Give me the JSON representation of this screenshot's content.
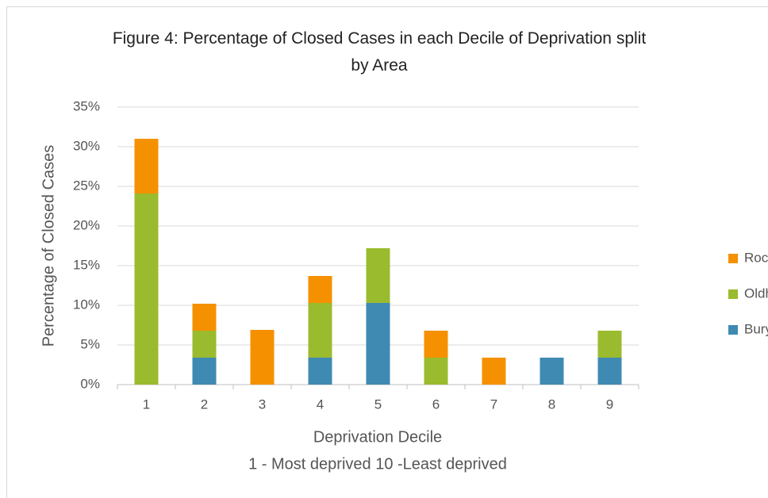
{
  "chart_data": {
    "type": "stacked_bar",
    "title": "Figure 4: Percentage of Closed Cases in each Decile of Deprivation split by Area",
    "x_label": "Deprivation Decile",
    "x_subtitle": "1 - Most deprived 10 -Least deprived",
    "y_label": "Percentage of Closed Cases",
    "categories": [
      "1",
      "2",
      "3",
      "4",
      "5",
      "6",
      "7",
      "8",
      "9"
    ],
    "series": [
      {
        "name": "Bury",
        "color": "#3f8ab3",
        "values": [
          0,
          3.4,
          0,
          3.4,
          10.3,
          0,
          0,
          3.4,
          3.4
        ]
      },
      {
        "name": "Oldham",
        "color": "#9bbb2e",
        "values": [
          24.1,
          3.4,
          0,
          6.9,
          6.9,
          3.4,
          0,
          0,
          3.4
        ]
      },
      {
        "name": "Rochdale",
        "color": "#f59100",
        "values": [
          6.9,
          3.4,
          6.9,
          3.4,
          0,
          3.4,
          3.4,
          0,
          0
        ]
      }
    ],
    "ylim": [
      0,
      35
    ],
    "yticks": [
      {
        "value": 0,
        "label": "0%"
      },
      {
        "value": 5,
        "label": "5%"
      },
      {
        "value": 10,
        "label": "10%"
      },
      {
        "value": 15,
        "label": "15%"
      },
      {
        "value": 20,
        "label": "20%"
      },
      {
        "value": 25,
        "label": "25%"
      },
      {
        "value": 30,
        "label": "30%"
      },
      {
        "value": 35,
        "label": "35%"
      }
    ],
    "grid": true,
    "legend": "right"
  }
}
